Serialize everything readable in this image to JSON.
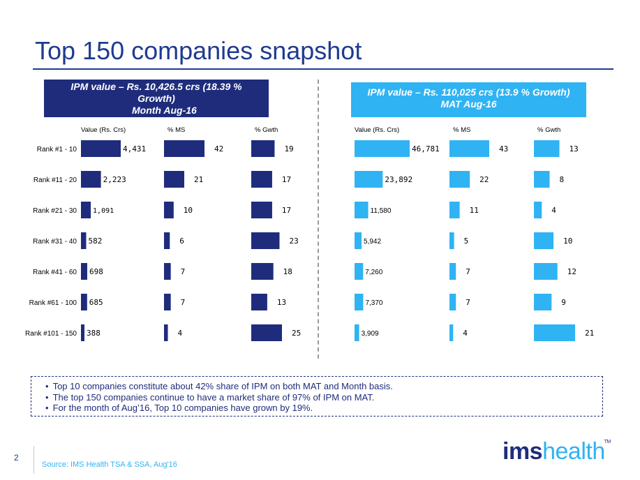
{
  "title": "Top 150 companies snapshot",
  "left_header": {
    "line1": "IPM value – Rs. 10,426.5 crs (18.39 %",
    "line2": "Growth)",
    "line3": "Month  Aug-16"
  },
  "right_header": {
    "line1": "IPM value – Rs. 110,025 crs (13.9 % Growth)",
    "line2": "MAT  Aug-16"
  },
  "colors": {
    "dark": "#1f2c7c",
    "light": "#2fb3f3",
    "title": "#1f3b8f"
  },
  "chart_data": [
    {
      "type": "bar",
      "orientation": "horizontal",
      "panel": "Month Aug-16",
      "categories": [
        "Rank #1 - 10",
        "Rank #11 - 20",
        "Rank #21 - 30",
        "Rank #31 - 40",
        "Rank #41 - 60",
        "Rank #61 - 100",
        "Rank #101 - 150"
      ],
      "series": [
        {
          "name": "Value (Rs. Crs)",
          "values": [
            4431,
            2223,
            1091,
            582,
            698,
            685,
            388
          ],
          "labels": [
            "4,431",
            "2,223",
            "1,091",
            "582",
            "698",
            "685",
            "388"
          ]
        },
        {
          "name": "% MS",
          "values": [
            42,
            21,
            10,
            6,
            7,
            7,
            4
          ],
          "labels": [
            "42",
            "21",
            "10",
            "6",
            "7",
            "7",
            "4"
          ]
        },
        {
          "name": "% Gwth",
          "values": [
            19,
            17,
            17,
            23,
            18,
            13,
            25
          ],
          "labels": [
            "19",
            "17",
            "17",
            "23",
            "18",
            "13",
            "25"
          ]
        }
      ],
      "color": "#1f2c7c"
    },
    {
      "type": "bar",
      "orientation": "horizontal",
      "panel": "MAT Aug-16",
      "categories": [
        "Rank #1 - 10",
        "Rank #11 - 20",
        "Rank #21 - 30",
        "Rank #31 - 40",
        "Rank #41 - 60",
        "Rank #61 - 100",
        "Rank #101 - 150"
      ],
      "series": [
        {
          "name": "Value (Rs. Crs)",
          "values": [
            46781,
            23892,
            11580,
            5942,
            7260,
            7370,
            3909
          ],
          "labels": [
            "46,781",
            "23,892",
            "11,580",
            "5,942",
            "7,260",
            "7,370",
            "3,909"
          ]
        },
        {
          "name": "% MS",
          "values": [
            43,
            22,
            11,
            5,
            7,
            7,
            4
          ],
          "labels": [
            "43",
            "22",
            "11",
            "5",
            "7",
            "7",
            "4"
          ]
        },
        {
          "name": "% Gwth",
          "values": [
            13,
            8,
            4,
            10,
            12,
            9,
            21
          ],
          "labels": [
            "13",
            "8",
            "4",
            "10",
            "12",
            "9",
            "21"
          ]
        }
      ],
      "color": "#2fb3f3"
    }
  ],
  "bullets": [
    "Top 10 companies constitute about 42% share of IPM on both MAT and Month basis.",
    "The top 150 companies continue to have a market share of 97% of IPM on MAT.",
    "For the month of Aug’16, Top 10 companies have grown by 19%."
  ],
  "page_number": "2",
  "source": "Source: IMS Health TSA & SSA, Aug'16",
  "logo": {
    "part1": "ims",
    "part2": "health",
    "tm": "TM"
  }
}
